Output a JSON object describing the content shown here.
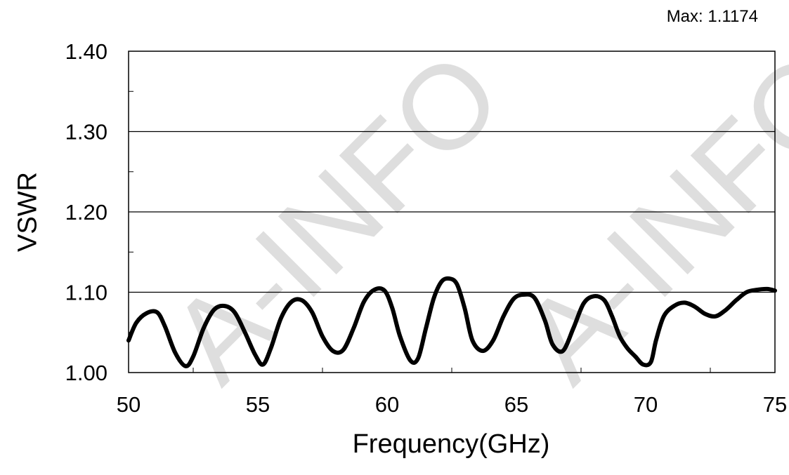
{
  "chart_data": {
    "type": "line",
    "title": "",
    "xlabel": "Frequency(GHz)",
    "ylabel": "VSWR",
    "annotation": "Max: 1.1174",
    "xlim": [
      50,
      75
    ],
    "ylim": [
      1.0,
      1.4
    ],
    "x_ticks": [
      "50",
      "55",
      "60",
      "65",
      "70",
      "75"
    ],
    "y_ticks": [
      "1.00",
      "1.10",
      "1.20",
      "1.30",
      "1.40"
    ],
    "grid": "horizontal major lines",
    "line_color": "#000000",
    "series": [
      {
        "x": [
          50.0,
          50.3,
          50.7,
          51.1,
          51.4,
          51.8,
          52.2,
          52.5,
          52.9,
          53.3,
          53.7,
          54.1,
          54.5,
          54.9,
          55.2,
          55.5,
          55.9,
          56.3,
          56.7,
          57.1,
          57.5,
          57.9,
          58.3,
          58.7,
          59.1,
          59.5,
          59.9,
          60.2,
          60.5,
          60.9,
          61.2,
          61.5,
          61.8,
          62.1,
          62.4,
          62.7,
          63.0,
          63.3,
          63.7,
          64.1,
          64.5,
          64.9,
          65.3,
          65.7,
          66.1,
          66.4,
          66.8,
          67.2,
          67.6,
          68.0,
          68.4,
          68.7,
          69.0,
          69.3,
          69.6,
          69.9,
          70.2,
          70.4,
          70.7,
          71.1,
          71.5,
          71.9,
          72.3,
          72.7,
          73.1,
          73.5,
          73.9,
          74.3,
          74.7,
          75.0
        ],
        "y": [
          1.04,
          1.062,
          1.074,
          1.075,
          1.058,
          1.025,
          1.008,
          1.02,
          1.055,
          1.078,
          1.083,
          1.075,
          1.05,
          1.022,
          1.01,
          1.03,
          1.068,
          1.088,
          1.09,
          1.075,
          1.045,
          1.027,
          1.028,
          1.055,
          1.088,
          1.103,
          1.102,
          1.08,
          1.045,
          1.015,
          1.018,
          1.055,
          1.092,
          1.113,
          1.117,
          1.11,
          1.08,
          1.04,
          1.027,
          1.04,
          1.07,
          1.092,
          1.097,
          1.093,
          1.065,
          1.035,
          1.027,
          1.055,
          1.086,
          1.095,
          1.09,
          1.07,
          1.045,
          1.03,
          1.02,
          1.01,
          1.013,
          1.04,
          1.07,
          1.083,
          1.087,
          1.082,
          1.073,
          1.07,
          1.078,
          1.09,
          1.1,
          1.103,
          1.104,
          1.102
        ]
      }
    ]
  }
}
